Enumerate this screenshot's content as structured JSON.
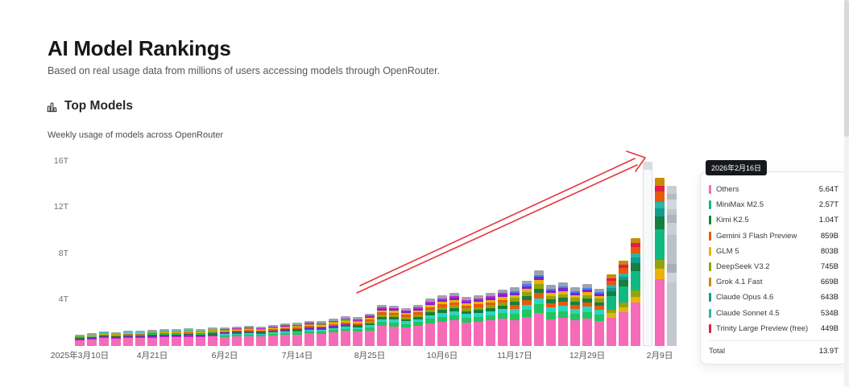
{
  "page": {
    "title": "AI Model Rankings",
    "subtitle": "Based on real usage data from millions of users accessing models through OpenRouter."
  },
  "section": {
    "icon": "bar-chart-icon",
    "title": "Top Models",
    "subtitle": "Weekly usage of models across OpenRouter"
  },
  "tooltip": {
    "date": "2026年2月16日",
    "total_label": "Total",
    "total_value": "13.9T",
    "rows": [
      {
        "name": "Others",
        "value": "5.64T",
        "color": "#f56bb8"
      },
      {
        "name": "MiniMax M2.5",
        "value": "2.57T",
        "color": "#10b981"
      },
      {
        "name": "Kimi K2.5",
        "value": "1.04T",
        "color": "#15803d"
      },
      {
        "name": "Gemini 3 Flash Preview",
        "value": "859B",
        "color": "#ea580c"
      },
      {
        "name": "GLM 5",
        "value": "803B",
        "color": "#eab308"
      },
      {
        "name": "DeepSeek V3.2",
        "value": "745B",
        "color": "#94a30d"
      },
      {
        "name": "Grok 4.1 Fast",
        "value": "669B",
        "color": "#ca8a04"
      },
      {
        "name": "Claude Opus 4.6",
        "value": "643B",
        "color": "#0f9d8f"
      },
      {
        "name": "Claude Sonnet 4.5",
        "value": "534B",
        "color": "#2bb6a8"
      },
      {
        "name": "Trinity Large Preview (free)",
        "value": "449B",
        "color": "#e11d48"
      }
    ]
  },
  "chart_data": {
    "type": "bar",
    "stacked": true,
    "title": "Top Models",
    "subtitle": "Weekly usage of models across OpenRouter",
    "unit": "tokens per week (T = trillions, B = billions)",
    "ylim": [
      0,
      17.5
    ],
    "ytick_values": [
      4,
      8,
      12,
      16
    ],
    "ytick_labels": [
      "4T",
      "8T",
      "12T",
      "16T"
    ],
    "xtick_bar_indices": [
      0,
      6,
      12,
      18,
      24,
      30,
      36,
      42,
      48
    ],
    "xtick_labels": [
      "2025年3月10日",
      "4月21日",
      "6月2日",
      "7月14日",
      "8月25日",
      "10月6日",
      "11月17日",
      "12月29日",
      "2月9日"
    ],
    "weekly_totals_T": [
      1.0,
      1.15,
      1.3,
      1.2,
      1.35,
      1.35,
      1.4,
      1.5,
      1.45,
      1.55,
      1.5,
      1.6,
      1.6,
      1.7,
      1.75,
      1.7,
      1.85,
      1.95,
      2.0,
      2.2,
      2.15,
      2.4,
      2.6,
      2.5,
      2.8,
      3.6,
      3.5,
      3.3,
      3.6,
      4.1,
      4.4,
      4.6,
      4.3,
      4.4,
      4.6,
      4.9,
      5.1,
      5.7,
      6.6,
      5.3,
      5.5,
      5.1,
      5.4,
      5.0,
      6.2,
      7.4,
      9.4,
      16.0,
      14.6,
      13.9
    ],
    "pale_bar_index": 47,
    "gray_bar_index": 49,
    "hovered_week": {
      "date": "2026年2月16日",
      "total_T": 13.9
    },
    "palette": {
      "pink": "#f56bb8",
      "magenta": "#c026d3",
      "purple": "#7e22ce",
      "dgreen": "#15803d",
      "green": "#22c55e",
      "mint": "#10b981",
      "teal": "#2dd4bf",
      "teal2": "#0f9d8f",
      "cyan": "#2bb6a8",
      "orange": "#ea580c",
      "yellow": "#eab308",
      "olive": "#94a30d",
      "amber": "#ca8a04",
      "crimson": "#e11d48",
      "gray": "#9ca3af",
      "blue": "#3b82f6"
    },
    "gray_shades": [
      "#c9ced4",
      "#b6bcc4",
      "#d4d7db",
      "#c0c6cd",
      "#aeb5bd",
      "#cbd0d6",
      "#bbc1c8",
      "#a8afb8",
      "#d0d4d9",
      "#c3c8cf"
    ],
    "pale_colors": {
      "body": "#f8f9fa",
      "cap": "#d9dcdf"
    },
    "mix_ranges": [
      {
        "from": 0,
        "to": 11,
        "mix": "early"
      },
      {
        "from": 12,
        "to": 23,
        "mix": "mid"
      },
      {
        "from": 24,
        "to": 35,
        "mix": "growth"
      },
      {
        "from": 36,
        "to": 43,
        "mix": "fall"
      },
      {
        "from": 44,
        "to": 49,
        "mix": "late"
      }
    ],
    "mixes": {
      "early": [
        [
          "pink",
          0.52
        ],
        [
          "magenta",
          0.05
        ],
        [
          "purple",
          0.06
        ],
        [
          "dgreen",
          0.05
        ],
        [
          "green",
          0.05
        ],
        [
          "orange",
          0.05
        ],
        [
          "yellow",
          0.04
        ],
        [
          "olive",
          0.04
        ],
        [
          "teal",
          0.04
        ],
        [
          "gray",
          0.1
        ]
      ],
      "mid": [
        [
          "pink",
          0.5
        ],
        [
          "green",
          0.08
        ],
        [
          "teal",
          0.06
        ],
        [
          "dgreen",
          0.05
        ],
        [
          "purple",
          0.05
        ],
        [
          "orange",
          0.05
        ],
        [
          "yellow",
          0.05
        ],
        [
          "olive",
          0.04
        ],
        [
          "magenta",
          0.04
        ],
        [
          "gray",
          0.08
        ]
      ],
      "growth": [
        [
          "pink",
          0.48
        ],
        [
          "green",
          0.1
        ],
        [
          "teal",
          0.07
        ],
        [
          "dgreen",
          0.06
        ],
        [
          "olive",
          0.06
        ],
        [
          "orange",
          0.05
        ],
        [
          "yellow",
          0.05
        ],
        [
          "purple",
          0.04
        ],
        [
          "magenta",
          0.03
        ],
        [
          "gray",
          0.06
        ]
      ],
      "fall": [
        [
          "pink",
          0.44
        ],
        [
          "green",
          0.11
        ],
        [
          "teal",
          0.08
        ],
        [
          "orange",
          0.07
        ],
        [
          "dgreen",
          0.06
        ],
        [
          "olive",
          0.06
        ],
        [
          "yellow",
          0.05
        ],
        [
          "purple",
          0.04
        ],
        [
          "blue",
          0.03
        ],
        [
          "gray",
          0.06
        ]
      ],
      "late": [
        [
          "pink",
          0.4
        ],
        [
          "yellow",
          0.058
        ],
        [
          "olive",
          0.054
        ],
        [
          "mint",
          0.185
        ],
        [
          "dgreen",
          0.075
        ],
        [
          "teal2",
          0.046
        ],
        [
          "cyan",
          0.038
        ],
        [
          "orange",
          0.062
        ],
        [
          "crimson",
          0.034
        ],
        [
          "amber",
          0.048
        ]
      ]
    },
    "annotation_arrow": {
      "color": "#e8323c",
      "description": "hand-drawn double-line red arrow pointing to the peak bar"
    }
  }
}
